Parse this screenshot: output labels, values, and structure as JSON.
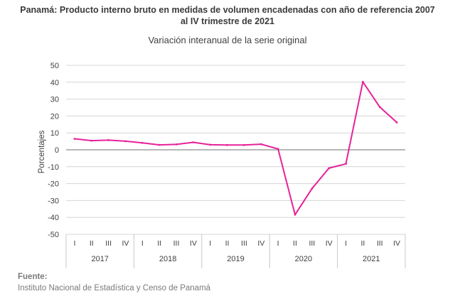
{
  "header": {
    "title_line1": "Panamá: Producto interno bruto en medidas  de volumen encadenadas con año de referencia 2007",
    "title_line2": "al IV trimestre de 2021",
    "subtitle": "Variación interanual de la serie original"
  },
  "source": {
    "label": "Fuente:",
    "text": "Instituto Nacional de Estadística y Censo de Panamá"
  },
  "chart_data": {
    "type": "line",
    "title": "Variación interanual de la serie original",
    "ylabel": "Porcentajes",
    "xlabel": "",
    "ylim": [
      -50,
      50
    ],
    "yticks": [
      50,
      40,
      30,
      20,
      10,
      0,
      -10,
      -20,
      -30,
      -40,
      -50
    ],
    "grid": "horizontal",
    "line_color": "#e6229a",
    "years": [
      "2017",
      "2018",
      "2019",
      "2020",
      "2021"
    ],
    "quarters": [
      "I",
      "II",
      "III",
      "IV"
    ],
    "x": [
      "I",
      "II",
      "III",
      "IV",
      "I",
      "II",
      "III",
      "IV",
      "I",
      "II",
      "III",
      "IV",
      "I",
      "II",
      "III",
      "IV",
      "I",
      "II",
      "III",
      "IV"
    ],
    "series": [
      {
        "values": [
          6.5,
          5.4,
          5.7,
          5.1,
          4.1,
          2.9,
          3.2,
          4.4,
          3.0,
          2.8,
          2.8,
          3.3,
          0.5,
          -38.4,
          -23.0,
          -10.9,
          -8.3,
          40.2,
          25.3,
          16.2
        ]
      }
    ]
  }
}
